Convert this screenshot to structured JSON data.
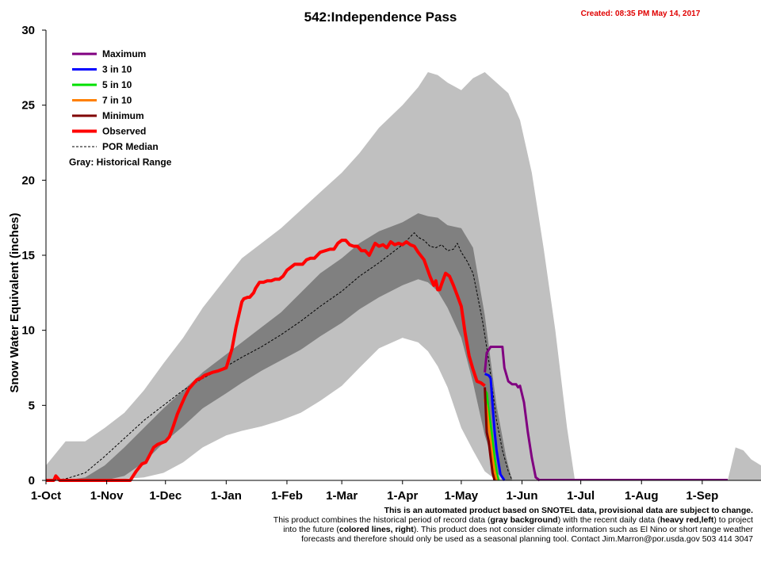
{
  "chart_data": {
    "type": "area",
    "title": "542:Independence Pass",
    "created": "Created: 08:35 PM May 14, 2017",
    "ylabel": "Snow Water Equivalent (inches)",
    "ylim": [
      0,
      30
    ],
    "yticks": [
      "0",
      "5",
      "10",
      "15",
      "20",
      "25",
      "30"
    ],
    "x_unit": "day index from Oct 1 (0-365)",
    "xlim": [
      0,
      365
    ],
    "xticks": [
      {
        "label": "1-Oct",
        "day": 0
      },
      {
        "label": "1-Nov",
        "day": 31
      },
      {
        "label": "1-Dec",
        "day": 61
      },
      {
        "label": "1-Jan",
        "day": 92
      },
      {
        "label": "1-Feb",
        "day": 123
      },
      {
        "label": "1-Mar",
        "day": 151
      },
      {
        "label": "1-Apr",
        "day": 182
      },
      {
        "label": "1-May",
        "day": 212
      },
      {
        "label": "1-Jun",
        "day": 243
      },
      {
        "label": "1-Jul",
        "day": 273
      },
      {
        "label": "1-Aug",
        "day": 304
      },
      {
        "label": "1-Sep",
        "day": 335
      }
    ],
    "grid": false,
    "legend_position": "top-left",
    "historical_range_note": "Gray: Historical Range",
    "bands": {
      "range": {
        "color": "#c0c0c0",
        "x": [
          0,
          10,
          20,
          30,
          40,
          50,
          60,
          70,
          80,
          92,
          100,
          110,
          120,
          130,
          140,
          151,
          160,
          170,
          182,
          190,
          195,
          200,
          205,
          212,
          218,
          224,
          230,
          236,
          242,
          248,
          254,
          260,
          266,
          270
        ],
        "upper": [
          1.0,
          2.6,
          2.6,
          3.5,
          4.5,
          6.0,
          7.8,
          9.5,
          11.5,
          13.5,
          14.8,
          15.8,
          16.8,
          18.0,
          19.2,
          20.5,
          21.8,
          23.5,
          25.0,
          26.2,
          27.2,
          27.0,
          26.5,
          26.0,
          26.8,
          27.2,
          26.5,
          25.8,
          24.0,
          20.5,
          15.5,
          10.0,
          3.5,
          0
        ],
        "lower": [
          0,
          0,
          0,
          0,
          0.1,
          0.2,
          0.5,
          1.2,
          2.2,
          3.0,
          3.3,
          3.6,
          4.0,
          4.5,
          5.3,
          6.3,
          7.5,
          8.8,
          9.5,
          9.2,
          8.6,
          7.6,
          6.2,
          3.5,
          2.0,
          0.6,
          0,
          0,
          0,
          0,
          0,
          0,
          0,
          0
        ]
      },
      "range_late": {
        "color": "#c0c0c0",
        "x": [
          348,
          352,
          356,
          360,
          365
        ],
        "upper": [
          0,
          2.2,
          2.0,
          1.4,
          1.0
        ],
        "lower": [
          0,
          0,
          0,
          0,
          0
        ]
      },
      "interquartile": {
        "color": "#808080",
        "x": [
          10,
          20,
          30,
          40,
          50,
          60,
          70,
          80,
          92,
          100,
          110,
          120,
          130,
          140,
          151,
          160,
          170,
          182,
          190,
          195,
          200,
          205,
          212,
          218,
          224,
          230,
          235,
          238
        ],
        "upper": [
          0,
          0.2,
          1.0,
          2.2,
          3.5,
          4.8,
          6.0,
          7.2,
          8.4,
          9.2,
          10.2,
          11.2,
          12.5,
          13.8,
          14.8,
          15.8,
          16.6,
          17.2,
          17.8,
          17.6,
          17.5,
          17.0,
          16.8,
          15.5,
          11.0,
          5.0,
          1.5,
          0
        ],
        "lower": [
          0,
          0,
          0,
          0.3,
          1.2,
          2.5,
          3.6,
          4.8,
          5.8,
          6.5,
          7.3,
          8.0,
          8.7,
          9.6,
          10.5,
          11.4,
          12.2,
          13.0,
          13.4,
          13.2,
          12.6,
          11.5,
          9.5,
          6.5,
          3.0,
          0.5,
          0,
          0
        ]
      }
    },
    "series": [
      {
        "name": "Maximum",
        "color": "#800080",
        "width": 3,
        "x": [
          224,
          225,
          227,
          231,
          233,
          234,
          236,
          238,
          240,
          241,
          242,
          244,
          246,
          248,
          250,
          252
        ],
        "y": [
          7.2,
          8.5,
          8.9,
          8.9,
          8.9,
          7.5,
          6.6,
          6.4,
          6.4,
          6.2,
          6.3,
          5.2,
          3.2,
          1.5,
          0.2,
          0
        ]
      },
      {
        "name": "3 in 10",
        "color": "#0000ff",
        "width": 3,
        "x": [
          224,
          226,
          227,
          228,
          229,
          230,
          232,
          234
        ],
        "y": [
          7.1,
          7.0,
          6.8,
          5.0,
          3.3,
          2.0,
          0.4,
          0
        ]
      },
      {
        "name": "5 in 10",
        "color": "#00e000",
        "width": 3,
        "x": [
          224,
          225,
          226,
          227,
          228,
          229,
          230,
          231
        ],
        "y": [
          6.0,
          5.8,
          4.5,
          3.6,
          2.5,
          1.4,
          0.5,
          0
        ]
      },
      {
        "name": "7 in 10",
        "color": "#ff8000",
        "width": 3,
        "x": [
          224,
          225,
          226,
          227,
          228,
          229,
          230
        ],
        "y": [
          5.4,
          4.8,
          3.6,
          2.6,
          1.5,
          0.6,
          0
        ]
      },
      {
        "name": "Minimum",
        "color": "#800000",
        "width": 3,
        "x": [
          224,
          225,
          226,
          227,
          228,
          229
        ],
        "y": [
          6.2,
          3.2,
          2.6,
          1.5,
          0.5,
          0
        ]
      },
      {
        "name": "Observed",
        "color": "#ff0000",
        "width": 4,
        "x": [
          0,
          4,
          5,
          7,
          8,
          12,
          30,
          43,
          46,
          49,
          51,
          53,
          55,
          57,
          59,
          61,
          63,
          65,
          67,
          69,
          71,
          73,
          75,
          77,
          79,
          81,
          83,
          85,
          88,
          92,
          95,
          97,
          100,
          101,
          103,
          104,
          106,
          107,
          109,
          111,
          113,
          115,
          117,
          119,
          121,
          123,
          127,
          129,
          131,
          133,
          135,
          137,
          140,
          145,
          147,
          149,
          151,
          153,
          155,
          157,
          159,
          161,
          163,
          165,
          168,
          170,
          172,
          174,
          176,
          178,
          180,
          182,
          184,
          186,
          188,
          190,
          193,
          196,
          197,
          198,
          199,
          200,
          201,
          202,
          204,
          206,
          208,
          210,
          212,
          213,
          214,
          216,
          218,
          220,
          222,
          224
        ],
        "y": [
          0,
          0,
          0.3,
          0,
          0,
          0,
          0,
          0,
          0.6,
          1.1,
          1.2,
          1.7,
          2.2,
          2.4,
          2.5,
          2.6,
          2.9,
          3.6,
          4.4,
          5.0,
          5.6,
          6.1,
          6.4,
          6.7,
          6.8,
          7.0,
          7.1,
          7.2,
          7.3,
          7.5,
          8.8,
          10.2,
          11.9,
          12.1,
          12.2,
          12.2,
          12.5,
          12.8,
          13.2,
          13.2,
          13.3,
          13.3,
          13.4,
          13.4,
          13.6,
          14.0,
          14.4,
          14.4,
          14.4,
          14.7,
          14.8,
          14.8,
          15.2,
          15.4,
          15.4,
          15.8,
          16.0,
          16.0,
          15.7,
          15.6,
          15.6,
          15.3,
          15.3,
          15.0,
          15.8,
          15.6,
          15.7,
          15.5,
          15.9,
          15.7,
          15.8,
          15.7,
          15.9,
          15.7,
          15.6,
          15.2,
          14.7,
          13.6,
          13.3,
          13.0,
          13.3,
          12.7,
          12.7,
          13.1,
          13.8,
          13.6,
          13.0,
          12.3,
          11.6,
          10.7,
          9.8,
          8.3,
          7.4,
          6.6,
          6.5,
          6.3
        ]
      },
      {
        "name": "POR Median",
        "color": "#000000",
        "width": 1,
        "dash": true,
        "x": [
          0,
          10,
          20,
          30,
          40,
          50,
          60,
          70,
          80,
          92,
          100,
          110,
          120,
          130,
          140,
          151,
          160,
          170,
          182,
          185,
          188,
          190,
          193,
          196,
          199,
          202,
          205,
          208,
          210,
          212,
          215,
          218,
          220,
          223,
          226,
          228,
          230,
          233,
          236,
          238
        ],
        "y": [
          0,
          0.1,
          0.5,
          1.6,
          2.8,
          4.0,
          5.0,
          6.0,
          6.8,
          7.6,
          8.2,
          8.9,
          9.7,
          10.6,
          11.6,
          12.6,
          13.6,
          14.5,
          15.7,
          16.1,
          16.5,
          16.2,
          16.0,
          15.6,
          15.5,
          15.7,
          15.3,
          15.4,
          15.8,
          15.2,
          14.6,
          13.8,
          12.5,
          10.5,
          8.0,
          6.0,
          4.0,
          2.0,
          0.6,
          0
        ]
      }
    ],
    "legend": [
      {
        "label": "Maximum",
        "color": "#800080",
        "style": "thick"
      },
      {
        "label": "3 in 10",
        "color": "#0000ff",
        "style": "thick"
      },
      {
        "label": "5 in 10",
        "color": "#00e000",
        "style": "thick"
      },
      {
        "label": "7 in 10",
        "color": "#ff8000",
        "style": "thick"
      },
      {
        "label": "Minimum",
        "color": "#800000",
        "style": "thick"
      },
      {
        "label": "Observed",
        "color": "#ff0000",
        "style": "heavy"
      },
      {
        "label": "POR Median",
        "color": "#000000",
        "style": "dash"
      }
    ]
  },
  "footnote": {
    "line1": "This is an automated product based on SNOTEL data, provisional data are subject to change.",
    "line2a": "This product combines the historical period of record data (",
    "line2b": "gray background",
    "line2c": ") with the recent daily data (",
    "line2d": "heavy red,left",
    "line2e": ") to project",
    "line3a": "into the future (",
    "line3b": "colored lines, right",
    "line3c": "). This product does not consider climate information such as El Nino or short range weather",
    "line4": "forecasts and therefore should only be used as a seasonal planning tool. Contact Jim.Marron@por.usda.gov 503 414 3047"
  }
}
